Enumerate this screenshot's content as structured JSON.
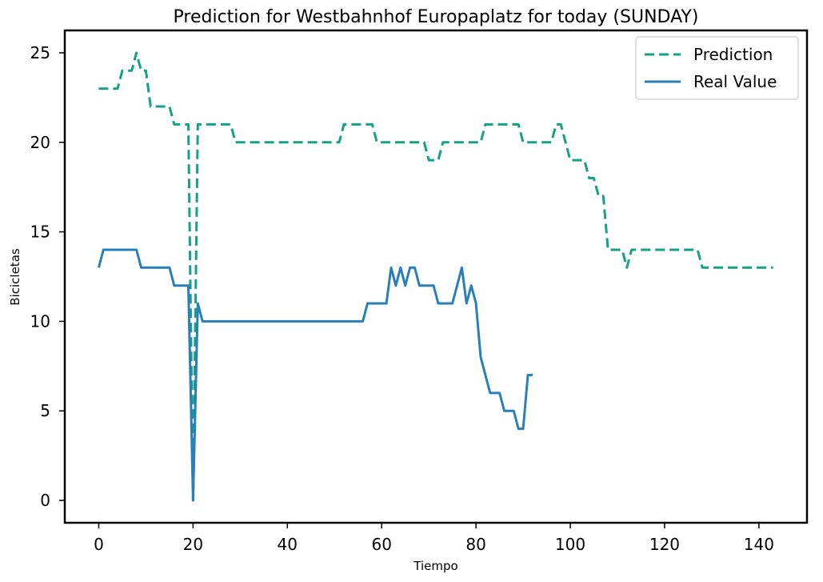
{
  "chart_data": {
    "type": "line",
    "title": "Prediction for Westbahnhof Europaplatz for today (SUNDAY)",
    "xlabel": "Tiempo",
    "ylabel": "Bicicletas",
    "xlim": [
      -7.2,
      150.2
    ],
    "ylim": [
      -1.25,
      26.25
    ],
    "xticks": [
      0,
      20,
      40,
      60,
      80,
      100,
      120,
      140
    ],
    "yticks": [
      0,
      5,
      10,
      15,
      20,
      25
    ],
    "grid": false,
    "legend_position": "top-right",
    "series": [
      {
        "name": "Prediction",
        "color": "#16a085",
        "dashed": true,
        "x": [
          0,
          1,
          2,
          3,
          4,
          5,
          6,
          7,
          8,
          9,
          10,
          11,
          12,
          13,
          14,
          15,
          16,
          17,
          18,
          19,
          20,
          21,
          22,
          23,
          24,
          25,
          26,
          27,
          28,
          29,
          30,
          31,
          32,
          33,
          34,
          35,
          36,
          37,
          38,
          39,
          40,
          41,
          42,
          43,
          44,
          45,
          46,
          47,
          48,
          49,
          50,
          51,
          52,
          53,
          54,
          55,
          56,
          57,
          58,
          59,
          60,
          61,
          62,
          63,
          64,
          65,
          66,
          67,
          68,
          69,
          70,
          71,
          72,
          73,
          74,
          75,
          76,
          77,
          78,
          79,
          80,
          81,
          82,
          83,
          84,
          85,
          86,
          87,
          88,
          89,
          90,
          91,
          92,
          93,
          94,
          95,
          96,
          97,
          98,
          99,
          100,
          101,
          102,
          103,
          104,
          105,
          106,
          107,
          108,
          109,
          110,
          111,
          112,
          113,
          114,
          115,
          116,
          117,
          118,
          119,
          120,
          121,
          122,
          123,
          124,
          125,
          126,
          127,
          128,
          129,
          130,
          131,
          132,
          133,
          134,
          135,
          136,
          137,
          138,
          139,
          140,
          141,
          142,
          143
        ],
        "y": [
          23,
          23,
          23,
          23,
          23,
          24,
          24,
          24,
          25,
          24,
          24,
          22,
          22,
          22,
          22,
          22,
          21,
          21,
          21,
          21,
          0,
          21,
          21,
          21,
          21,
          21,
          21,
          21,
          21,
          20,
          20,
          20,
          20,
          20,
          20,
          20,
          20,
          20,
          20,
          20,
          20,
          20,
          20,
          20,
          20,
          20,
          20,
          20,
          20,
          20,
          20,
          20,
          21,
          21,
          21,
          21,
          21,
          21,
          21,
          20,
          20,
          20,
          20,
          20,
          20,
          20,
          20,
          20,
          20,
          20,
          19,
          19,
          19,
          20,
          20,
          20,
          20,
          20,
          20,
          20,
          20,
          20,
          21,
          21,
          21,
          21,
          21,
          21,
          21,
          21,
          20,
          20,
          20,
          20,
          20,
          20,
          20,
          21,
          21,
          20,
          19,
          19,
          19,
          19,
          18,
          18,
          17,
          17,
          14,
          14,
          14,
          14,
          13,
          14,
          14,
          14,
          14,
          14,
          14,
          14,
          14,
          14,
          14,
          14,
          14,
          14,
          14,
          14,
          13,
          13,
          13,
          13,
          13,
          13,
          13,
          13,
          13,
          13,
          13,
          13,
          13,
          13,
          13,
          13
        ]
      },
      {
        "name": "Real Value",
        "color": "#2980b9",
        "dashed": false,
        "x": [
          0,
          1,
          2,
          3,
          4,
          5,
          6,
          7,
          8,
          9,
          10,
          11,
          12,
          13,
          14,
          15,
          16,
          17,
          18,
          19,
          20,
          21,
          22,
          23,
          24,
          25,
          26,
          27,
          28,
          29,
          30,
          31,
          32,
          33,
          34,
          35,
          36,
          37,
          38,
          39,
          40,
          41,
          42,
          43,
          44,
          45,
          46,
          47,
          48,
          49,
          50,
          51,
          52,
          53,
          54,
          55,
          56,
          57,
          58,
          59,
          60,
          61,
          62,
          63,
          64,
          65,
          66,
          67,
          68,
          69,
          70,
          71,
          72,
          73,
          74,
          75,
          76,
          77,
          78,
          79,
          80,
          81,
          82,
          83,
          84,
          85,
          86,
          87,
          88,
          89,
          90,
          91,
          92
        ],
        "y": [
          13,
          14,
          14,
          14,
          14,
          14,
          14,
          14,
          14,
          13,
          13,
          13,
          13,
          13,
          13,
          13,
          12,
          12,
          12,
          12,
          0,
          11,
          10,
          10,
          10,
          10,
          10,
          10,
          10,
          10,
          10,
          10,
          10,
          10,
          10,
          10,
          10,
          10,
          10,
          10,
          10,
          10,
          10,
          10,
          10,
          10,
          10,
          10,
          10,
          10,
          10,
          10,
          10,
          10,
          10,
          10,
          10,
          11,
          11,
          11,
          11,
          11,
          13,
          12,
          13,
          12,
          13,
          13,
          12,
          12,
          12,
          12,
          11,
          11,
          11,
          11,
          12,
          13,
          11,
          12,
          11,
          8,
          7,
          6,
          6,
          6,
          5,
          5,
          5,
          4,
          4,
          7,
          7
        ]
      }
    ]
  }
}
